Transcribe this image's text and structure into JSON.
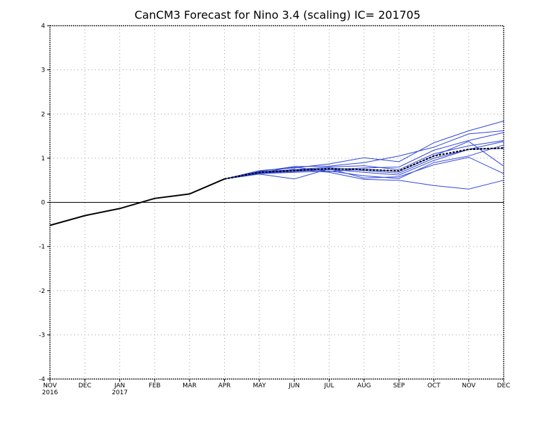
{
  "chart_data": {
    "type": "line",
    "title": "CanCM3 Forecast for Nino 3.4 (scaling) IC= 201705",
    "xlabel": "",
    "ylabel": "",
    "x_ticks": [
      {
        "label": "NOV",
        "year": "2016"
      },
      {
        "label": "DEC",
        "year": ""
      },
      {
        "label": "JAN",
        "year": "2017"
      },
      {
        "label": "FEB",
        "year": ""
      },
      {
        "label": "MAR",
        "year": ""
      },
      {
        "label": "APR",
        "year": ""
      },
      {
        "label": "MAY",
        "year": ""
      },
      {
        "label": "JUN",
        "year": ""
      },
      {
        "label": "JUL",
        "year": ""
      },
      {
        "label": "AUG",
        "year": ""
      },
      {
        "label": "SEP",
        "year": ""
      },
      {
        "label": "OCT",
        "year": ""
      },
      {
        "label": "NOV",
        "year": ""
      },
      {
        "label": "DEC",
        "year": ""
      }
    ],
    "y_ticks": [
      -4,
      -3,
      -2,
      -1,
      0,
      1,
      2,
      3,
      4
    ],
    "ylim": [
      -4,
      4
    ],
    "grid": true,
    "zero_line": true,
    "colors": {
      "observed": "#000000",
      "members": "#2f45d8",
      "mean": "#000000",
      "grid": "#9a9a9a"
    },
    "observed": {
      "x": [
        0,
        1,
        2,
        3,
        4,
        5
      ],
      "values": [
        -0.52,
        -0.3,
        -0.14,
        0.09,
        0.19,
        0.53
      ]
    },
    "members": {
      "x": [
        5,
        6,
        7,
        8,
        9,
        10,
        11,
        12,
        13
      ],
      "series": [
        [
          0.53,
          0.72,
          0.78,
          0.87,
          1.01,
          0.92,
          1.35,
          1.62,
          1.84
        ],
        [
          0.53,
          0.7,
          0.81,
          0.82,
          0.9,
          1.05,
          1.25,
          1.55,
          1.62
        ],
        [
          0.53,
          0.69,
          0.74,
          0.8,
          0.83,
          0.74,
          1.1,
          1.28,
          1.4
        ],
        [
          0.53,
          0.68,
          0.72,
          0.74,
          0.78,
          0.8,
          1.18,
          1.4,
          1.58
        ],
        [
          0.53,
          0.66,
          0.7,
          0.75,
          0.68,
          0.62,
          0.95,
          1.2,
          1.22
        ],
        [
          0.53,
          0.65,
          0.68,
          0.71,
          0.6,
          0.54,
          0.9,
          1.05,
          1.3
        ],
        [
          0.53,
          0.67,
          0.8,
          0.7,
          0.75,
          0.7,
          1.05,
          1.38,
          0.82
        ],
        [
          0.53,
          0.64,
          0.53,
          0.76,
          0.55,
          0.58,
          0.85,
          1.02,
          0.65
        ],
        [
          0.53,
          0.65,
          0.75,
          0.68,
          0.52,
          0.5,
          0.38,
          0.3,
          0.5
        ],
        [
          0.53,
          0.68,
          0.72,
          0.78,
          0.72,
          0.66,
          1.0,
          1.2,
          1.38
        ]
      ]
    },
    "ensemble_mean": {
      "x": [
        5,
        6,
        7,
        8,
        9,
        10,
        11,
        12,
        13
      ],
      "values": [
        0.53,
        0.68,
        0.72,
        0.76,
        0.74,
        0.71,
        1.05,
        1.2,
        1.23
      ]
    }
  }
}
